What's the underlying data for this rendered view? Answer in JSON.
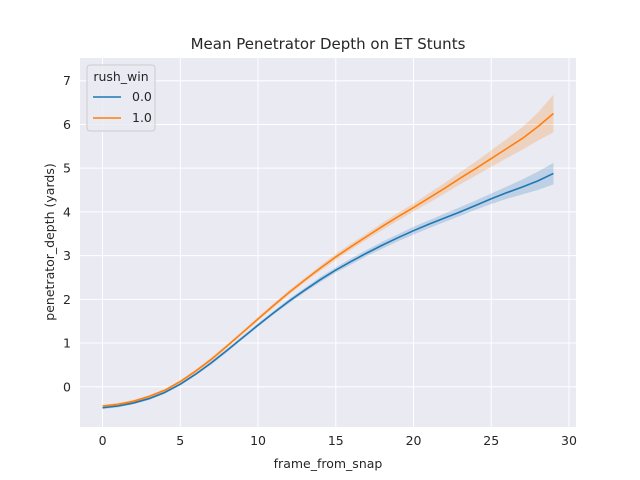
{
  "chart_data": {
    "type": "line",
    "title": "Mean Penetrator Depth on ET Stunts",
    "xlabel": "frame_from_snap",
    "ylabel": "penetrator_depth (yards)",
    "xlim": [
      -1.45,
      30.45
    ],
    "ylim": [
      -0.92,
      7.52
    ],
    "xticks": [
      0,
      5,
      10,
      15,
      20,
      25,
      30
    ],
    "yticks": [
      0,
      1,
      2,
      3,
      4,
      5,
      6,
      7
    ],
    "grid": true,
    "background": "#eaeaf2",
    "legend": {
      "title": "rush_win",
      "placement": "top-left"
    },
    "x": [
      0,
      1,
      2,
      3,
      4,
      5,
      6,
      7,
      8,
      9,
      10,
      11,
      12,
      13,
      14,
      15,
      16,
      17,
      18,
      19,
      20,
      21,
      22,
      23,
      24,
      25,
      26,
      27,
      28,
      29
    ],
    "series": [
      {
        "name": "0.0",
        "color": "#1f77b4",
        "values": [
          -0.48,
          -0.44,
          -0.37,
          -0.27,
          -0.13,
          0.06,
          0.29,
          0.55,
          0.83,
          1.12,
          1.41,
          1.69,
          1.96,
          2.21,
          2.45,
          2.67,
          2.87,
          3.06,
          3.24,
          3.41,
          3.57,
          3.72,
          3.86,
          4.0,
          4.15,
          4.3,
          4.44,
          4.57,
          4.71,
          4.88
        ],
        "ci_lower": [
          -0.51,
          -0.47,
          -0.4,
          -0.3,
          -0.16,
          0.03,
          0.26,
          0.51,
          0.79,
          1.08,
          1.37,
          1.65,
          1.91,
          2.16,
          2.39,
          2.61,
          2.8,
          2.99,
          3.16,
          3.33,
          3.48,
          3.63,
          3.77,
          3.91,
          4.05,
          4.18,
          4.3,
          4.4,
          4.5,
          4.63
        ],
        "ci_upper": [
          -0.45,
          -0.41,
          -0.34,
          -0.24,
          -0.1,
          0.09,
          0.32,
          0.59,
          0.87,
          1.16,
          1.45,
          1.73,
          2.01,
          2.26,
          2.51,
          2.73,
          2.94,
          3.13,
          3.32,
          3.49,
          3.66,
          3.81,
          3.96,
          4.11,
          4.26,
          4.42,
          4.58,
          4.74,
          4.92,
          5.12
        ]
      },
      {
        "name": "1.0",
        "color": "#ff7f0e",
        "values": [
          -0.44,
          -0.4,
          -0.33,
          -0.22,
          -0.08,
          0.12,
          0.36,
          0.63,
          0.93,
          1.24,
          1.55,
          1.86,
          2.16,
          2.44,
          2.71,
          2.97,
          3.21,
          3.44,
          3.67,
          3.89,
          4.1,
          4.32,
          4.54,
          4.77,
          4.99,
          5.22,
          5.45,
          5.68,
          5.95,
          6.25
        ],
        "ci_lower": [
          -0.47,
          -0.43,
          -0.36,
          -0.25,
          -0.11,
          0.09,
          0.32,
          0.59,
          0.89,
          1.2,
          1.51,
          1.81,
          2.11,
          2.39,
          2.65,
          2.9,
          3.14,
          3.37,
          3.59,
          3.8,
          4.01,
          4.21,
          4.42,
          4.63,
          4.83,
          5.03,
          5.23,
          5.42,
          5.63,
          5.82
        ],
        "ci_upper": [
          -0.41,
          -0.37,
          -0.3,
          -0.19,
          -0.05,
          0.15,
          0.4,
          0.67,
          0.97,
          1.28,
          1.6,
          1.91,
          2.21,
          2.49,
          2.77,
          3.04,
          3.28,
          3.51,
          3.75,
          3.98,
          4.19,
          4.43,
          4.66,
          4.91,
          5.15,
          5.41,
          5.67,
          5.94,
          6.27,
          6.68
        ]
      }
    ]
  }
}
